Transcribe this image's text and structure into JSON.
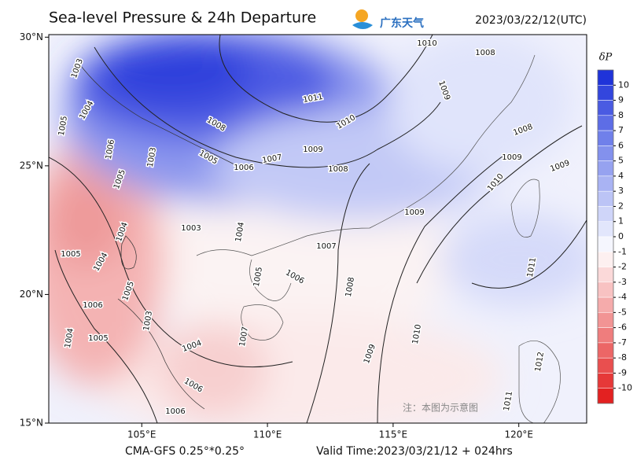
{
  "header": {
    "title": "Sea-level Pressure & 24h Departure",
    "logo": "广东天气",
    "datetime": "2023/03/22/12(UTC)"
  },
  "map": {
    "lon_range": [
      101.3,
      122.7
    ],
    "lat_range": [
      15,
      30.1
    ],
    "lon_ticks": [
      {
        "value": 105,
        "label": "105°E"
      },
      {
        "value": 110,
        "label": "110°E"
      },
      {
        "value": 115,
        "label": "115°E"
      },
      {
        "value": 120,
        "label": "120°E"
      }
    ],
    "lat_ticks": [
      {
        "value": 30,
        "label": "30°N"
      },
      {
        "value": 25,
        "label": "25°N"
      },
      {
        "value": 20,
        "label": "20°N"
      },
      {
        "value": 15,
        "label": "15°N"
      }
    ],
    "contour_labels": [
      "1003",
      "1004",
      "1005",
      "1006",
      "1003",
      "1005",
      "1004",
      "1005",
      "1004",
      "1005",
      "1006",
      "1003",
      "1004",
      "1005",
      "1004",
      "1006",
      "1006",
      "1003",
      "1004",
      "1005",
      "1006",
      "1007",
      "1008",
      "1007",
      "1009",
      "1010",
      "1008",
      "1005",
      "1006",
      "1007",
      "1009",
      "1008",
      "1010",
      "1011",
      "1009",
      "1010",
      "1008",
      "1008",
      "1009",
      "1009",
      "1010",
      "1009",
      "1011",
      "1012",
      "1011"
    ],
    "note": "注：本图为示意图"
  },
  "colorbar": {
    "title": "δP",
    "ticks": [
      10,
      9,
      8,
      7,
      6,
      5,
      4,
      3,
      2,
      1,
      0,
      -1,
      -2,
      -3,
      -4,
      -5,
      -6,
      -7,
      -8,
      -9,
      -10
    ],
    "colors": [
      "#1f33d9",
      "#3346dd",
      "#4a5be2",
      "#5d6de6",
      "#7080ea",
      "#8391ed",
      "#96a2f0",
      "#a9b3f3",
      "#bcc4f6",
      "#cfd5f9",
      "#e2e6fc",
      "#f5f6fe",
      "#fdf0f0",
      "#fbd9d9",
      "#f8c2c2",
      "#f5abab",
      "#f29494",
      "#ef7d7d",
      "#ec6666",
      "#e94f4f",
      "#e63838",
      "#e32121"
    ]
  },
  "footer": {
    "model": "CMA-GFS  0.25°*0.25°",
    "valid": "Valid Time:2023/03/21/12 + 024hrs"
  }
}
